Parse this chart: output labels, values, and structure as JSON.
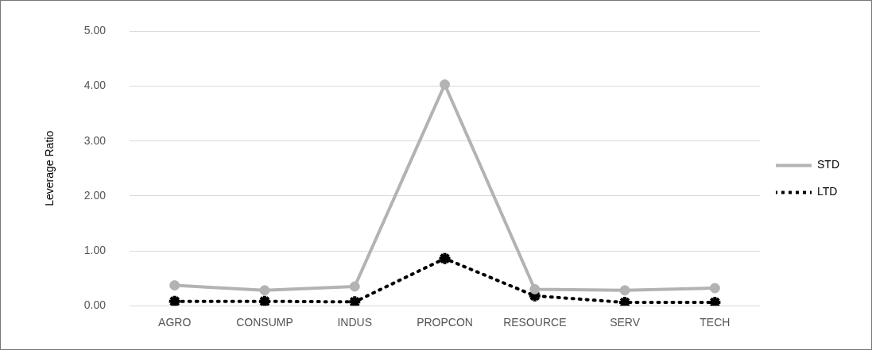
{
  "chart_data": {
    "type": "line",
    "ylabel": "Leverage Ratio",
    "categories": [
      "AGRO",
      "CONSUMP",
      "INDUS",
      "PROPCON",
      "RESOURCE",
      "SERV",
      "TECH"
    ],
    "series": [
      {
        "name": "STD",
        "color": "#b4b2b2",
        "marker": "circle",
        "line_style": "solid",
        "values": [
          0.37,
          0.28,
          0.35,
          4.03,
          0.3,
          0.28,
          0.32
        ]
      },
      {
        "name": "LTD",
        "color": "#000000",
        "marker": "cross",
        "line_style": "dotted",
        "values": [
          0.08,
          0.08,
          0.07,
          0.86,
          0.18,
          0.06,
          0.06
        ]
      }
    ],
    "ylim": [
      0,
      5
    ],
    "yticks": [
      {
        "value": 0,
        "label": "0.00"
      },
      {
        "value": 1,
        "label": "1.00"
      },
      {
        "value": 2,
        "label": "2.00"
      },
      {
        "value": 3,
        "label": "3.00"
      },
      {
        "value": 4,
        "label": "4.00"
      },
      {
        "value": 5,
        "label": "5.00"
      }
    ],
    "grid": "y",
    "legend": "right"
  }
}
